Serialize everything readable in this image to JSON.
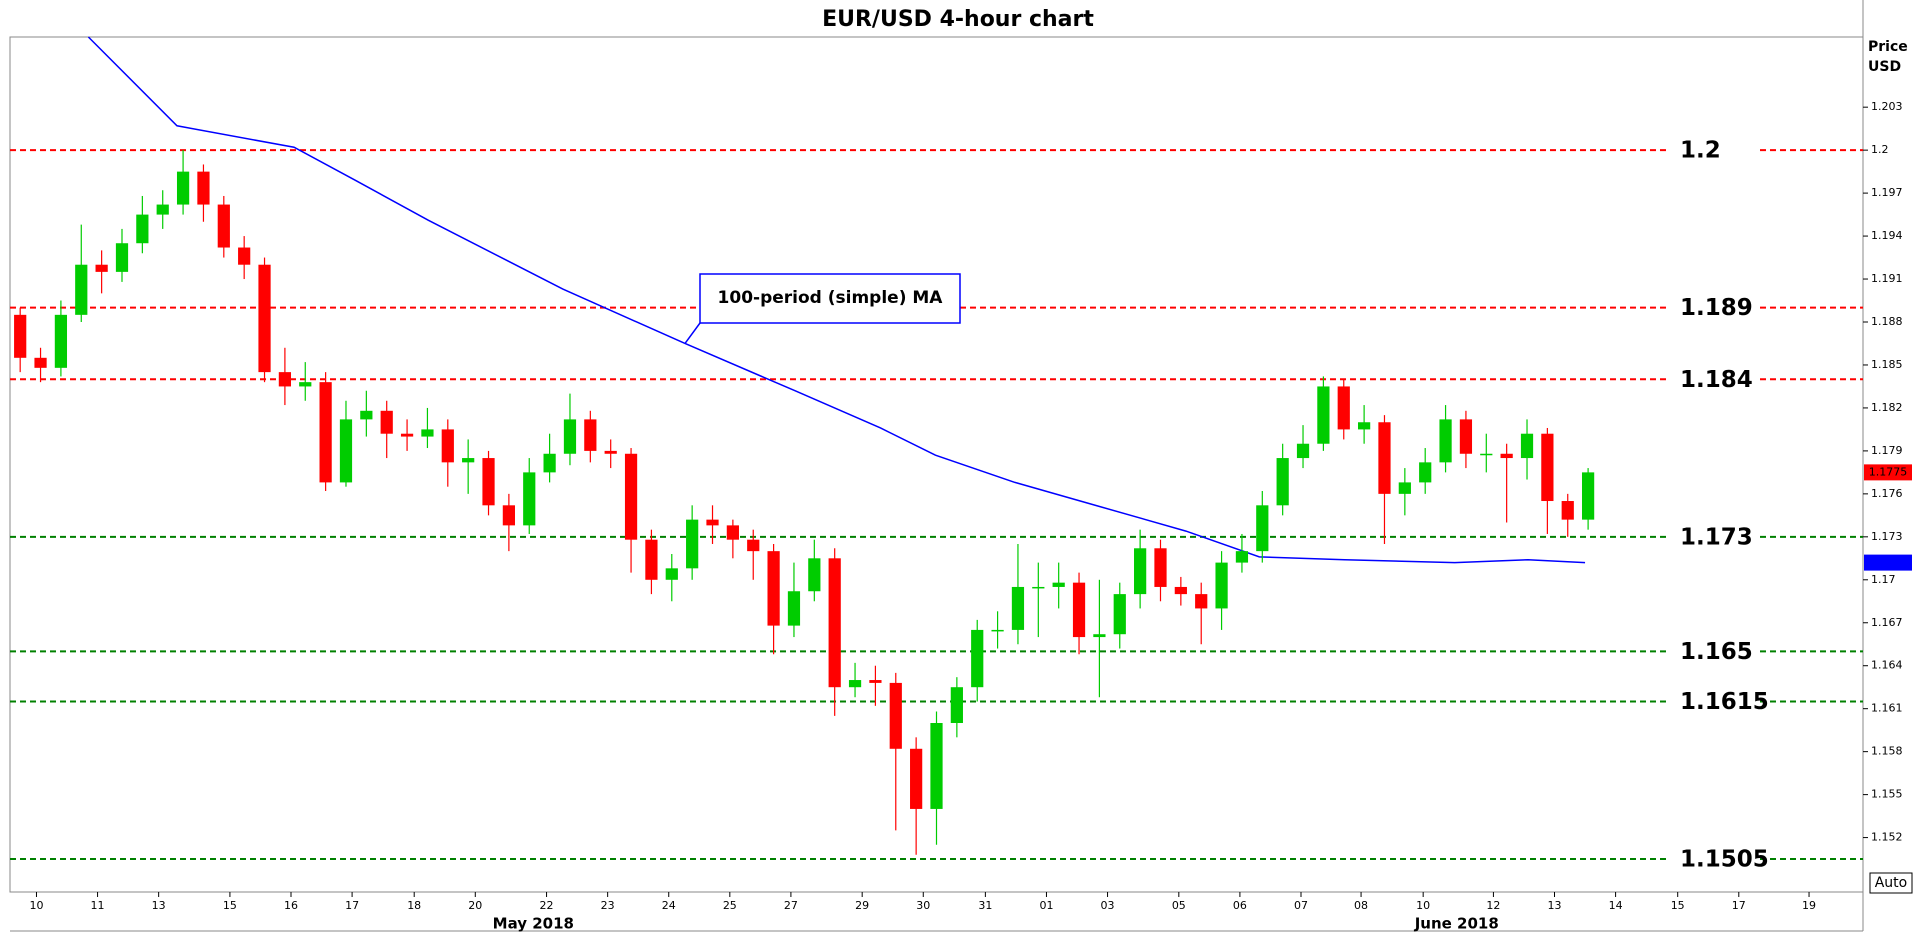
{
  "chart_data": {
    "type": "candlestick",
    "title": "EUR/USD 4-hour chart",
    "y_label_lines": [
      "Price",
      "USD"
    ],
    "annotation": "100-period (simple) MA",
    "auto_button": "Auto",
    "up_color": "#00cc00",
    "down_color": "#ff0000",
    "ma_color": "#0000ff",
    "xlim": [
      0,
      182
    ],
    "ylim": [
      1.1482,
      1.2079
    ],
    "yticks": [
      1.203,
      1.2,
      1.197,
      1.194,
      1.191,
      1.188,
      1.185,
      1.182,
      1.179,
      1.176,
      1.173,
      1.17,
      1.167,
      1.164,
      1.161,
      1.158,
      1.155,
      1.152
    ],
    "xticks": [
      {
        "value": 2.6,
        "label": "10"
      },
      {
        "value": 8.6,
        "label": "11"
      },
      {
        "value": 14.6,
        "label": "13"
      },
      {
        "value": 21.6,
        "label": "15"
      },
      {
        "value": 27.6,
        "label": "16"
      },
      {
        "value": 33.6,
        "label": "17"
      },
      {
        "value": 39.7,
        "label": "18"
      },
      {
        "value": 45.7,
        "label": "20"
      },
      {
        "value": 52.7,
        "label": "22"
      },
      {
        "value": 58.7,
        "label": "23"
      },
      {
        "value": 64.7,
        "label": "24"
      },
      {
        "value": 70.7,
        "label": "25"
      },
      {
        "value": 76.7,
        "label": "27"
      },
      {
        "value": 83.7,
        "label": "29"
      },
      {
        "value": 89.7,
        "label": "30"
      },
      {
        "value": 95.8,
        "label": "31"
      },
      {
        "value": 101.8,
        "label": "01"
      },
      {
        "value": 107.8,
        "label": "03"
      },
      {
        "value": 114.8,
        "label": "05"
      },
      {
        "value": 120.8,
        "label": "06"
      },
      {
        "value": 126.8,
        "label": "07"
      },
      {
        "value": 132.7,
        "label": "08"
      },
      {
        "value": 138.8,
        "label": "10"
      },
      {
        "value": 145.7,
        "label": "12"
      },
      {
        "value": 151.7,
        "label": "13"
      },
      {
        "value": 157.7,
        "label": "14"
      },
      {
        "value": 163.8,
        "label": "15"
      },
      {
        "value": 169.8,
        "label": "17"
      },
      {
        "value": 176.7,
        "label": "19"
      }
    ],
    "month_ticks": [
      {
        "value": 51.4,
        "label": "May 2018"
      },
      {
        "value": 142.1,
        "label": "June 2018"
      }
    ],
    "levels": [
      {
        "value": 1.2,
        "color": "#ff0000"
      },
      {
        "value": 1.189,
        "color": "#ff0000"
      },
      {
        "value": 1.184,
        "color": "#ff0000"
      },
      {
        "value": 1.173,
        "color": "#008000"
      },
      {
        "value": 1.165,
        "color": "#008000"
      },
      {
        "value": 1.1615,
        "color": "#008000"
      },
      {
        "value": 1.1505,
        "color": "#008000"
      }
    ],
    "x": [
      1,
      3,
      5,
      7,
      9,
      11,
      13,
      15,
      17,
      19,
      21,
      23,
      25,
      27,
      29,
      31,
      33,
      35,
      37,
      39,
      41,
      43,
      45,
      47,
      49,
      51,
      53,
      55,
      57,
      59,
      61,
      63,
      65,
      67,
      69,
      71,
      73,
      75,
      77,
      79,
      81,
      83,
      85,
      87,
      89,
      91,
      93,
      95,
      97,
      99,
      101,
      103,
      105,
      107,
      109,
      111,
      113,
      115,
      117,
      119,
      121,
      123,
      125,
      127,
      129,
      131,
      133,
      135,
      137,
      139,
      141,
      143,
      145,
      147,
      149,
      151,
      153,
      155
    ],
    "open": [
      1.1885,
      1.1855,
      1.1848,
      1.1885,
      1.192,
      1.1915,
      1.1935,
      1.1955,
      1.1962,
      1.1985,
      1.1962,
      1.1932,
      1.192,
      1.1845,
      1.1835,
      1.1838,
      1.1768,
      1.1812,
      1.1818,
      1.1802,
      1.18,
      1.1805,
      1.1782,
      1.1785,
      1.1752,
      1.1738,
      1.1775,
      1.1788,
      1.1812,
      1.179,
      1.1788,
      1.1728,
      1.17,
      1.1708,
      1.1742,
      1.1738,
      1.1728,
      1.172,
      1.1668,
      1.1692,
      1.1715,
      1.1625,
      1.163,
      1.1628,
      1.1582,
      1.154,
      1.16,
      1.1625,
      1.1665,
      1.1665,
      1.1695,
      1.1695,
      1.1698,
      1.166,
      1.1662,
      1.169,
      1.1722,
      1.1695,
      1.169,
      1.168,
      1.1712,
      1.172,
      1.1752,
      1.1785,
      1.1795,
      1.1835,
      1.1805,
      1.181,
      1.176,
      1.1768,
      1.1782,
      1.1812,
      1.1788,
      1.1788,
      1.1785,
      1.1802,
      1.1755,
      1.1742
    ],
    "high": [
      1.189,
      1.1862,
      1.1895,
      1.1948,
      1.193,
      1.1945,
      1.1968,
      1.1972,
      1.2,
      1.199,
      1.1968,
      1.194,
      1.1925,
      1.1862,
      1.1852,
      1.1845,
      1.1825,
      1.1832,
      1.1825,
      1.1812,
      1.182,
      1.1812,
      1.1798,
      1.179,
      1.176,
      1.1785,
      1.1802,
      1.183,
      1.1818,
      1.1798,
      1.1792,
      1.1735,
      1.1718,
      1.1752,
      1.1752,
      1.1742,
      1.1735,
      1.1725,
      1.1712,
      1.1728,
      1.1722,
      1.1642,
      1.164,
      1.1635,
      1.159,
      1.1608,
      1.1632,
      1.1672,
      1.1678,
      1.1725,
      1.1712,
      1.1712,
      1.1705,
      1.17,
      1.1698,
      1.1735,
      1.1728,
      1.1702,
      1.1698,
      1.172,
      1.1732,
      1.1762,
      1.1795,
      1.1808,
      1.1842,
      1.184,
      1.1822,
      1.1815,
      1.1778,
      1.1792,
      1.1822,
      1.1818,
      1.1802,
      1.1795,
      1.1812,
      1.1806,
      1.176,
      1.1778
    ],
    "low": [
      1.1845,
      1.1838,
      1.1842,
      1.188,
      1.19,
      1.1908,
      1.1928,
      1.1945,
      1.1955,
      1.195,
      1.1925,
      1.191,
      1.1838,
      1.1822,
      1.1825,
      1.1762,
      1.1765,
      1.18,
      1.1785,
      1.179,
      1.1792,
      1.1765,
      1.176,
      1.1745,
      1.172,
      1.1732,
      1.1768,
      1.178,
      1.1782,
      1.1778,
      1.1705,
      1.169,
      1.1685,
      1.17,
      1.1725,
      1.1715,
      1.17,
      1.1648,
      1.166,
      1.1685,
      1.1605,
      1.1618,
      1.1612,
      1.1525,
      1.1508,
      1.1515,
      1.159,
      1.1615,
      1.1652,
      1.1655,
      1.166,
      1.168,
      1.1648,
      1.1618,
      1.1652,
      1.168,
      1.1685,
      1.1682,
      1.1655,
      1.1665,
      1.1705,
      1.1712,
      1.1745,
      1.1778,
      1.179,
      1.1798,
      1.1795,
      1.1725,
      1.1745,
      1.176,
      1.1775,
      1.1778,
      1.1775,
      1.174,
      1.177,
      1.1732,
      1.173,
      1.1735
    ],
    "close": [
      1.1855,
      1.1848,
      1.1885,
      1.192,
      1.1915,
      1.1935,
      1.1955,
      1.1962,
      1.1985,
      1.1962,
      1.1932,
      1.192,
      1.1845,
      1.1835,
      1.1838,
      1.1768,
      1.1812,
      1.1818,
      1.1802,
      1.18,
      1.1805,
      1.1782,
      1.1785,
      1.1752,
      1.1738,
      1.1775,
      1.1788,
      1.1812,
      1.179,
      1.1788,
      1.1728,
      1.17,
      1.1708,
      1.1742,
      1.1738,
      1.1728,
      1.172,
      1.1668,
      1.1692,
      1.1715,
      1.1625,
      1.163,
      1.1628,
      1.1582,
      1.154,
      1.16,
      1.1625,
      1.1665,
      1.1665,
      1.1695,
      1.1695,
      1.1698,
      1.166,
      1.1662,
      1.169,
      1.1722,
      1.1695,
      1.169,
      1.168,
      1.1712,
      1.172,
      1.1752,
      1.1785,
      1.1795,
      1.1835,
      1.1805,
      1.181,
      1.176,
      1.1768,
      1.1782,
      1.1812,
      1.1788,
      1.1788,
      1.1785,
      1.1802,
      1.1755,
      1.1742,
      1.1775
    ],
    "ma_x": [
      7.7,
      16.4,
      27.9,
      33.9,
      41.1,
      54.3,
      66.3,
      77.1,
      85.5,
      90.9,
      98.7,
      107.1,
      115.5,
      122.7,
      131.1,
      141.9,
      149.1,
      154.7
    ],
    "ma": [
      1.2079,
      1.2017,
      1.2002,
      1.1979,
      1.1951,
      1.1903,
      1.1865,
      1.1832,
      1.1806,
      1.1787,
      1.1768,
      1.1751,
      1.1734,
      1.1716,
      1.1714,
      1.1712,
      1.1714,
      1.1712
    ]
  }
}
